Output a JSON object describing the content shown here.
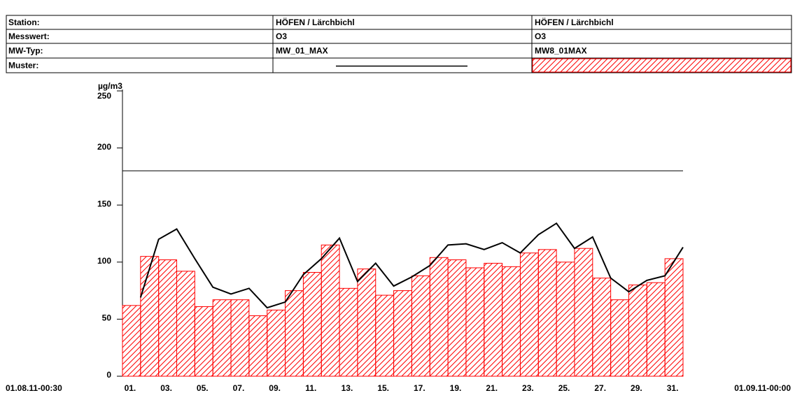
{
  "legend_table": {
    "row_labels": [
      "Station:",
      "Messwert:",
      "MW-Typ:",
      "Muster:"
    ]
  },
  "chart_data": {
    "type": "bar",
    "y_label": "µg/m3",
    "start_label": "01.08.11-00:30",
    "end_label": "01.09.11-00:00",
    "categories": [
      "01.",
      null,
      "03.",
      null,
      "05.",
      null,
      "07.",
      null,
      "09.",
      null,
      "11.",
      null,
      "13.",
      null,
      "15.",
      null,
      "17.",
      null,
      "19.",
      null,
      "21.",
      null,
      "23.",
      null,
      "25.",
      null,
      "27.",
      null,
      "29.",
      null,
      "31."
    ],
    "ylim": [
      0,
      250
    ],
    "yticks": [
      0,
      50,
      100,
      150,
      200,
      250
    ],
    "limit": 180,
    "series": [
      {
        "name": "MW_01_MAX",
        "station": "HÖFEN / Lärchbichl",
        "measure": "O3",
        "type": "line",
        "color": "#000000",
        "values": [
          69,
          120,
          129,
          103,
          78,
          72,
          77,
          60,
          65,
          89,
          103,
          121,
          83,
          99,
          79,
          87,
          97,
          115,
          116,
          111,
          117,
          108,
          124,
          134,
          112,
          122,
          86,
          74,
          84,
          88,
          113
        ]
      },
      {
        "name": "MW8_01MAX",
        "station": "HÖFEN / Lärchbichl",
        "measure": "O3",
        "type": "bar",
        "color": "#ff0000",
        "values": [
          62,
          105,
          102,
          92,
          61,
          67,
          67,
          53,
          58,
          75,
          91,
          115,
          77,
          94,
          71,
          75,
          88,
          104,
          102,
          95,
          99,
          96,
          108,
          111,
          100,
          112,
          86,
          67,
          80,
          82,
          103
        ]
      }
    ]
  }
}
